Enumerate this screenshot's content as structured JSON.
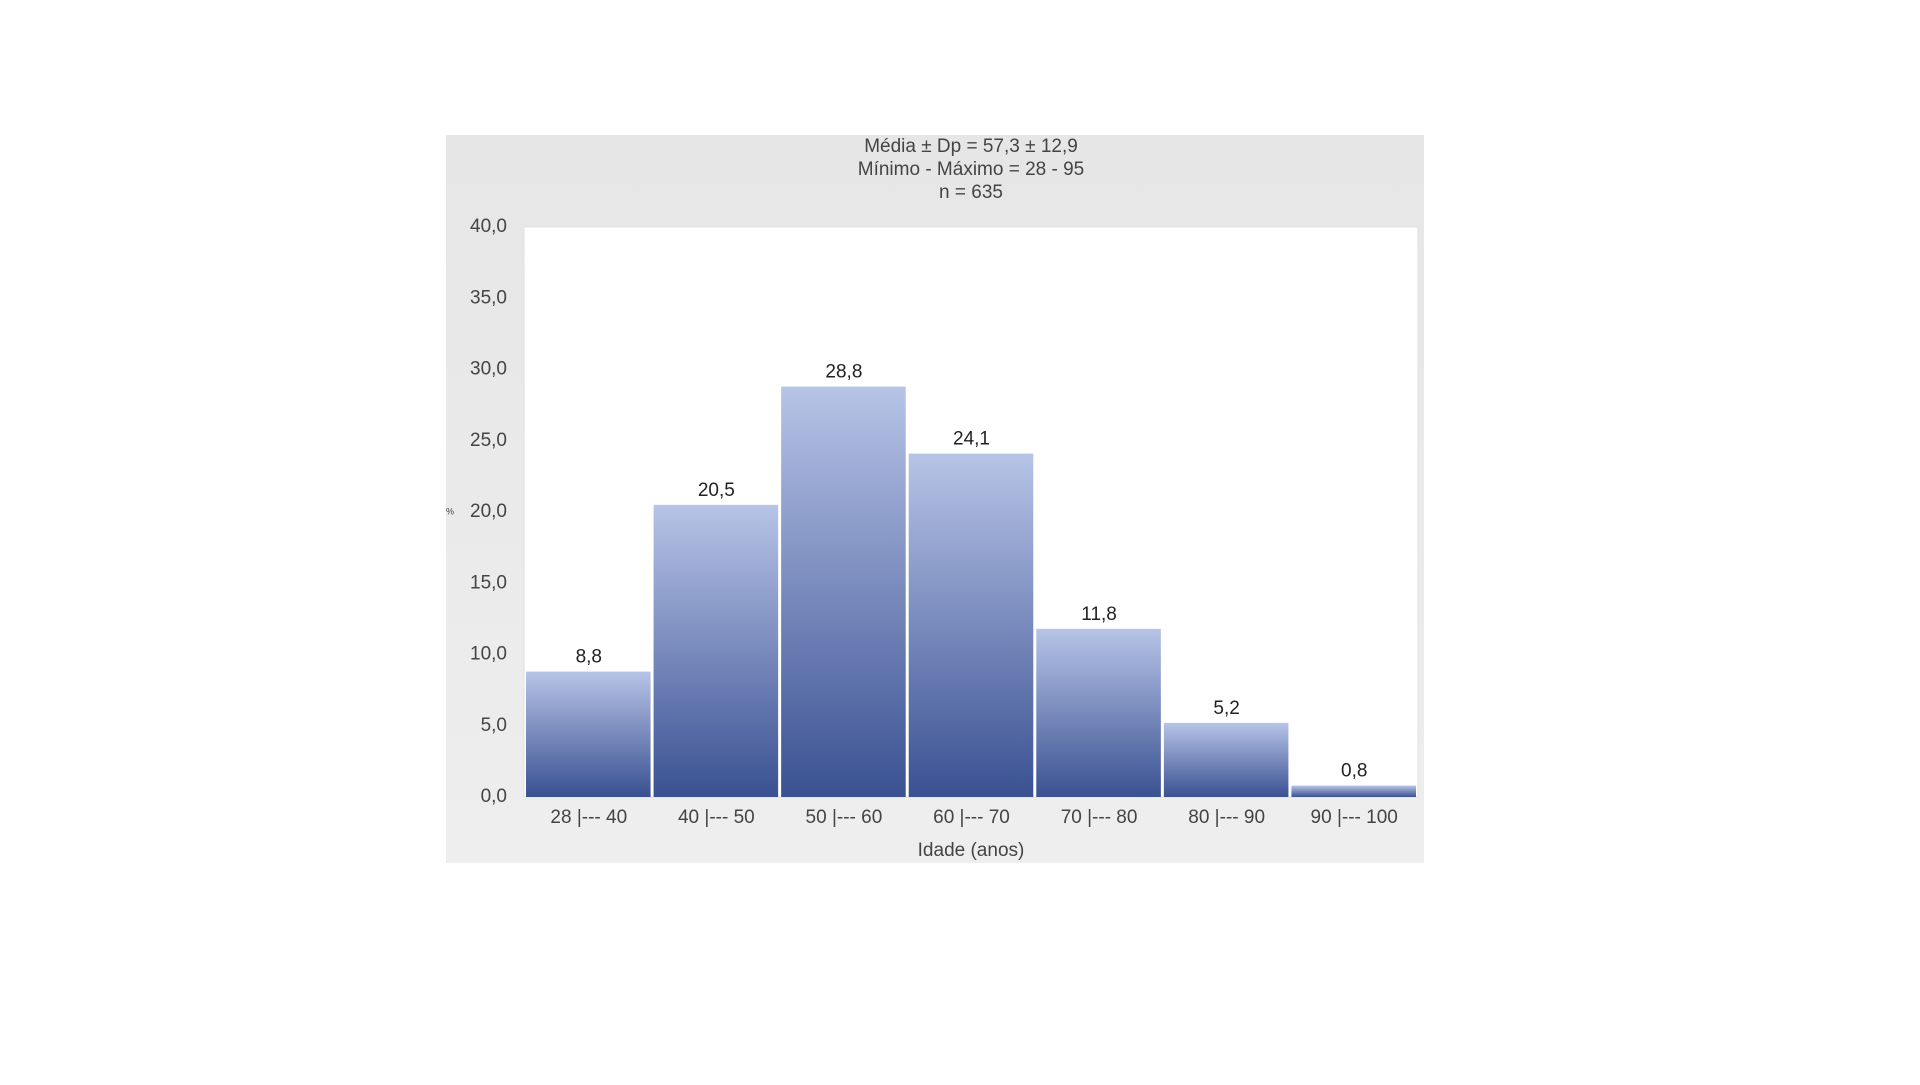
{
  "chart_data": {
    "type": "bar",
    "title": "Média ± Dp =  57,3 ± 12,9",
    "subtitle": "Mínimo - Máximo = 28 - 95",
    "annotations": [
      "n = 635"
    ],
    "x_label": "Idade (anos)",
    "y_label": "%",
    "categories": [
      "28 |--- 40",
      "40 |--- 50",
      "50 |--- 60",
      "60 |--- 70",
      "70 |--- 80",
      "80 |--- 90",
      "90 |--- 100"
    ],
    "values": [
      8.8,
      20.5,
      28.8,
      24.1,
      11.8,
      5.2,
      0.8
    ],
    "value_labels": [
      "8,8",
      "20,5",
      "28,8",
      "24,1",
      "11,8",
      "5,2",
      "0,8"
    ],
    "color": "#3a5192",
    "ylim": [
      0,
      40
    ],
    "yticks": [
      {
        "value": 0,
        "label": "0,0"
      },
      {
        "value": 5,
        "label": "5,0"
      },
      {
        "value": 10,
        "label": "10,0"
      },
      {
        "value": 15,
        "label": "15,0"
      },
      {
        "value": 20,
        "label": "20,0"
      },
      {
        "value": 25,
        "label": "25,0"
      },
      {
        "value": 30,
        "label": "30,0"
      },
      {
        "value": 35,
        "label": "35,0"
      },
      {
        "value": 40,
        "label": "40,0"
      }
    ],
    "grid": false
  }
}
